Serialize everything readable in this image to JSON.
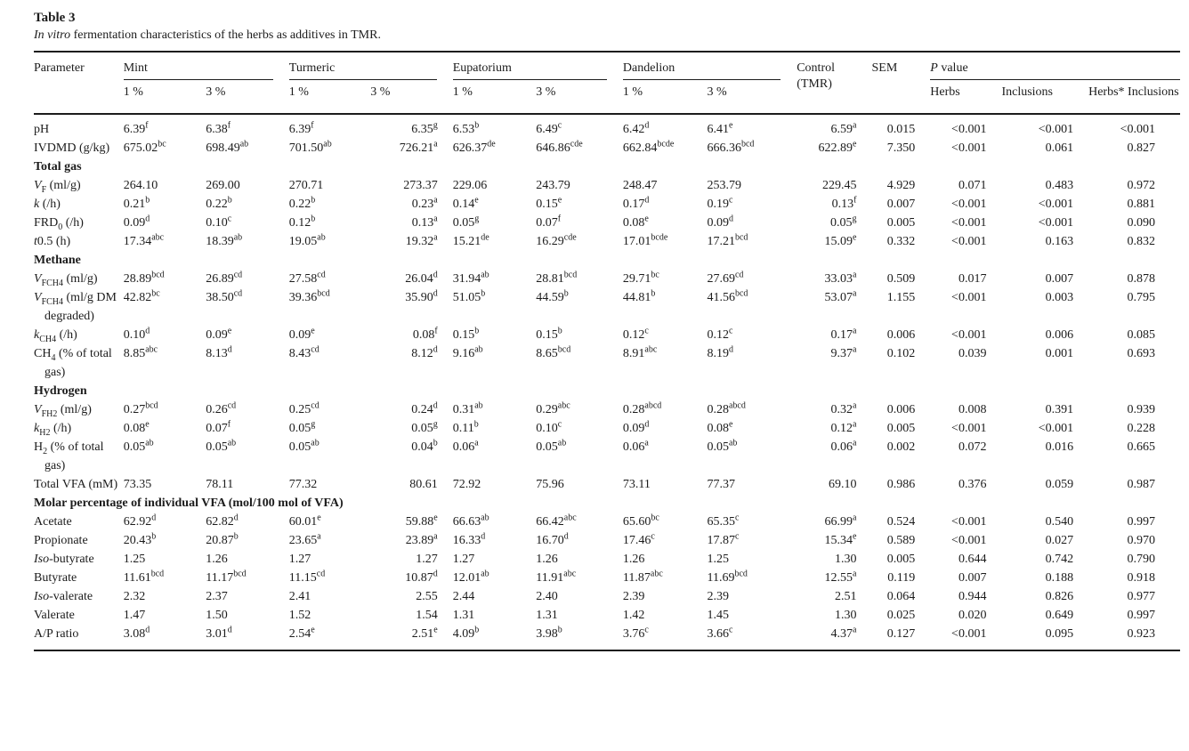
{
  "colors": {
    "text": "#1c1c1c",
    "background": "#ffffff",
    "rule": "#1c1c1c"
  },
  "table": {
    "label": "Table 3",
    "caption_italic": "In vitro",
    "caption_rest": " fermentation characteristics of the herbs as additives in TMR.",
    "header": {
      "parameter": "Parameter",
      "groups": [
        {
          "label": "Mint",
          "subs": [
            "1 %",
            "3 %"
          ]
        },
        {
          "label": "Turmeric",
          "subs": [
            "1 %",
            "3 %"
          ]
        },
        {
          "label": "Eupatorium",
          "subs": [
            "1 %",
            "3 %"
          ]
        },
        {
          "label": "Dandelion",
          "subs": [
            "1 %",
            "3 %"
          ]
        }
      ],
      "control": "Control (TMR)",
      "sem": "SEM",
      "p_italic": "P",
      "p_rest": " value",
      "p_subs": [
        "Herbs",
        "Inclusions",
        "Herbs* Inclusions"
      ]
    },
    "rows": [
      {
        "label": [
          {
            "t": "pH"
          }
        ],
        "values": [
          "6.39^f",
          "6.38^f",
          "6.39^f",
          "6.35^g",
          "6.53^b",
          "6.49^c",
          "6.42^d",
          "6.41^e",
          "6.59^a",
          "0.015",
          "<0.001",
          "<0.001",
          "<0.001"
        ]
      },
      {
        "label": [
          {
            "t": "IVDMD (g/kg)"
          }
        ],
        "values": [
          "675.02^bc",
          "698.49^ab",
          "701.50^ab",
          "726.21^a",
          "626.37^de",
          "646.86^cde",
          "662.84^bcde",
          "666.36^bcd",
          "622.89^e",
          "7.350",
          "<0.001",
          "0.061",
          "0.827"
        ]
      },
      {
        "section": "Total gas"
      },
      {
        "label": [
          {
            "t": "V",
            "i": true
          },
          {
            "t": "F",
            "sub": true
          },
          {
            "t": " (ml/g)"
          }
        ],
        "values": [
          "264.10",
          "269.00",
          "270.71",
          "273.37",
          "229.06",
          "243.79",
          "248.47",
          "253.79",
          "229.45",
          "4.929",
          "0.071",
          "0.483",
          "0.972"
        ]
      },
      {
        "label": [
          {
            "t": "k",
            "i": true
          },
          {
            "t": " (/h)"
          }
        ],
        "values": [
          "0.21^b",
          "0.22^b",
          "0.22^b",
          "0.23^a",
          "0.14^e",
          "0.15^e",
          "0.17^d",
          "0.19^c",
          "0.13^f",
          "0.007",
          "<0.001",
          "<0.001",
          "0.881"
        ]
      },
      {
        "label": [
          {
            "t": "FRD"
          },
          {
            "t": "0",
            "sub": true
          },
          {
            "t": " (/h)"
          }
        ],
        "values": [
          "0.09^d",
          "0.10^c",
          "0.12^b",
          "0.13^a",
          "0.05^g",
          "0.07^f",
          "0.08^e",
          "0.09^d",
          "0.05^g",
          "0.005",
          "<0.001",
          "<0.001",
          "0.090"
        ]
      },
      {
        "label": [
          {
            "t": "t",
            "i": true
          },
          {
            "t": "0.5 (h)"
          }
        ],
        "values": [
          "17.34^abc",
          "18.39^ab",
          "19.05^ab",
          "19.32^a",
          "15.21^de",
          "16.29^cde",
          "17.01^bcde",
          "17.21^bcd",
          "15.09^e",
          "0.332",
          "<0.001",
          "0.163",
          "0.832"
        ]
      },
      {
        "section": "Methane"
      },
      {
        "label": [
          {
            "t": "V",
            "i": true
          },
          {
            "t": "FCH4",
            "sub": true
          },
          {
            "t": " (ml/g)"
          }
        ],
        "values": [
          "28.89^bcd",
          "26.89^cd",
          "27.58^cd",
          "26.04^d",
          "31.94^ab",
          "28.81^bcd",
          "29.71^bc",
          "27.69^cd",
          "33.03^a",
          "0.509",
          "0.017",
          "0.007",
          "0.878"
        ]
      },
      {
        "label": [
          {
            "t": "V",
            "i": true
          },
          {
            "t": "FCH4",
            "sub": true
          },
          {
            "t": " (ml/g DM degraded)"
          }
        ],
        "values": [
          "42.82^bc",
          "38.50^cd",
          "39.36^bcd",
          "35.90^d",
          "51.05^b",
          "44.59^b",
          "44.81^b",
          "41.56^bcd",
          "53.07^a",
          "1.155",
          "<0.001",
          "0.003",
          "0.795"
        ]
      },
      {
        "label": [
          {
            "t": "k",
            "i": true
          },
          {
            "t": "CH4",
            "sub": true
          },
          {
            "t": " (/h)"
          }
        ],
        "values": [
          "0.10^d",
          "0.09^e",
          "0.09^e",
          "0.08^f",
          "0.15^b",
          "0.15^b",
          "0.12^c",
          "0.12^c",
          "0.17^a",
          "0.006",
          "<0.001",
          "0.006",
          "0.085"
        ]
      },
      {
        "label": [
          {
            "t": "CH"
          },
          {
            "t": "4",
            "sub": true
          },
          {
            "t": " (% of total gas)"
          }
        ],
        "values": [
          "8.85^abc",
          "8.13^d",
          "8.43^cd",
          "8.12^d",
          "9.16^ab",
          "8.65^bcd",
          "8.91^abc",
          "8.19^d",
          "9.37^a",
          "0.102",
          "0.039",
          "0.001",
          "0.693"
        ]
      },
      {
        "section": "Hydrogen"
      },
      {
        "label": [
          {
            "t": "V",
            "i": true
          },
          {
            "t": "FH2",
            "sub": true
          },
          {
            "t": " (ml/g)"
          }
        ],
        "values": [
          "0.27^bcd",
          "0.26^cd",
          "0.25^cd",
          "0.24^d",
          "0.31^ab",
          "0.29^abc",
          "0.28^abcd",
          "0.28^abcd",
          "0.32^a",
          "0.006",
          "0.008",
          "0.391",
          "0.939"
        ]
      },
      {
        "label": [
          {
            "t": "k",
            "i": true
          },
          {
            "t": "H2",
            "sub": true
          },
          {
            "t": " (/h)"
          }
        ],
        "values": [
          "0.08^e",
          "0.07^f",
          "0.05^g",
          "0.05^g",
          "0.11^b",
          "0.10^c",
          "0.09^d",
          "0.08^e",
          "0.12^a",
          "0.005",
          "<0.001",
          "<0.001",
          "0.228"
        ]
      },
      {
        "label": [
          {
            "t": "H"
          },
          {
            "t": "2",
            "sub": true
          },
          {
            "t": " (% of total gas)"
          }
        ],
        "values": [
          "0.05^ab",
          "0.05^ab",
          "0.05^ab",
          "0.04^b",
          "0.06^a",
          "0.05^ab",
          "0.06^a",
          "0.05^ab",
          "0.06^a",
          "0.002",
          "0.072",
          "0.016",
          "0.665"
        ]
      },
      {
        "label": [
          {
            "t": "Total VFA (mM)"
          }
        ],
        "values": [
          "73.35",
          "78.11",
          "77.32",
          "80.61",
          "72.92",
          "75.96",
          "73.11",
          "77.37",
          "69.10",
          "0.986",
          "0.376",
          "0.059",
          "0.987"
        ]
      },
      {
        "section": "Molar percentage of individual VFA (mol/100 mol of VFA)"
      },
      {
        "label": [
          {
            "t": "Acetate"
          }
        ],
        "values": [
          "62.92^d",
          "62.82^d",
          "60.01^e",
          "59.88^e",
          "66.63^ab",
          "66.42^abc",
          "65.60^bc",
          "65.35^c",
          "66.99^a",
          "0.524",
          "<0.001",
          "0.540",
          "0.997"
        ]
      },
      {
        "label": [
          {
            "t": "Propionate"
          }
        ],
        "values": [
          "20.43^b",
          "20.87^b",
          "23.65^a",
          "23.89^a",
          "16.33^d",
          "16.70^d",
          "17.46^c",
          "17.87^c",
          "15.34^e",
          "0.589",
          "<0.001",
          "0.027",
          "0.970"
        ]
      },
      {
        "label": [
          {
            "t": "Iso",
            "i": true
          },
          {
            "t": "-butyrate"
          }
        ],
        "values": [
          "1.25",
          "1.26",
          "1.27",
          "1.27",
          "1.27",
          "1.26",
          "1.26",
          "1.25",
          "1.30",
          "0.005",
          "0.644",
          "0.742",
          "0.790"
        ]
      },
      {
        "label": [
          {
            "t": "Butyrate"
          }
        ],
        "values": [
          "11.61^bcd",
          "11.17^bcd",
          "11.15^cd",
          "10.87^d",
          "12.01^ab",
          "11.91^abc",
          "11.87^abc",
          "11.69^bcd",
          "12.55^a",
          "0.119",
          "0.007",
          "0.188",
          "0.918"
        ]
      },
      {
        "label": [
          {
            "t": "Iso",
            "i": true
          },
          {
            "t": "-valerate"
          }
        ],
        "values": [
          "2.32",
          "2.37",
          "2.41",
          "2.55",
          "2.44",
          "2.40",
          "2.39",
          "2.39",
          "2.51",
          "0.064",
          "0.944",
          "0.826",
          "0.977"
        ]
      },
      {
        "label": [
          {
            "t": "Valerate"
          }
        ],
        "values": [
          "1.47",
          "1.50",
          "1.52",
          "1.54",
          "1.31",
          "1.31",
          "1.42",
          "1.45",
          "1.30",
          "0.025",
          "0.020",
          "0.649",
          "0.997"
        ]
      },
      {
        "label": [
          {
            "t": "A/P ratio"
          }
        ],
        "values": [
          "3.08^d",
          "3.01^d",
          "2.54^e",
          "2.51^e",
          "4.09^b",
          "3.98^b",
          "3.76^c",
          "3.66^c",
          "4.37^a",
          "0.127",
          "<0.001",
          "0.095",
          "0.923"
        ]
      }
    ]
  }
}
